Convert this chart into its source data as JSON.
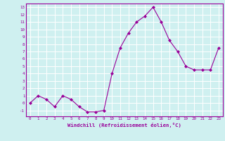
{
  "x": [
    0,
    1,
    2,
    3,
    4,
    5,
    6,
    7,
    8,
    9,
    10,
    11,
    12,
    13,
    14,
    15,
    16,
    17,
    18,
    19,
    20,
    21,
    22,
    23
  ],
  "y": [
    0,
    1,
    0.5,
    -0.5,
    1,
    0.5,
    -0.5,
    -1.2,
    -1.2,
    -1,
    4,
    7.5,
    9.5,
    11,
    11.8,
    13,
    11,
    8.5,
    7,
    5,
    4.5,
    4.5,
    4.5,
    7.5
  ],
  "line_color": "#990099",
  "marker": "D",
  "marker_size": 2,
  "bg_color": "#cff0f0",
  "grid_color": "#ffffff",
  "xlabel": "Windchill (Refroidissement éolien,°C)",
  "xlabel_color": "#990099",
  "tick_color": "#990099",
  "ylim": [
    -1.8,
    13.5
  ],
  "xlim": [
    -0.5,
    23.5
  ],
  "yticks": [
    -1,
    0,
    1,
    2,
    3,
    4,
    5,
    6,
    7,
    8,
    9,
    10,
    11,
    12,
    13
  ],
  "xticks": [
    0,
    1,
    2,
    3,
    4,
    5,
    6,
    7,
    8,
    9,
    10,
    11,
    12,
    13,
    14,
    15,
    16,
    17,
    18,
    19,
    20,
    21,
    22,
    23
  ]
}
